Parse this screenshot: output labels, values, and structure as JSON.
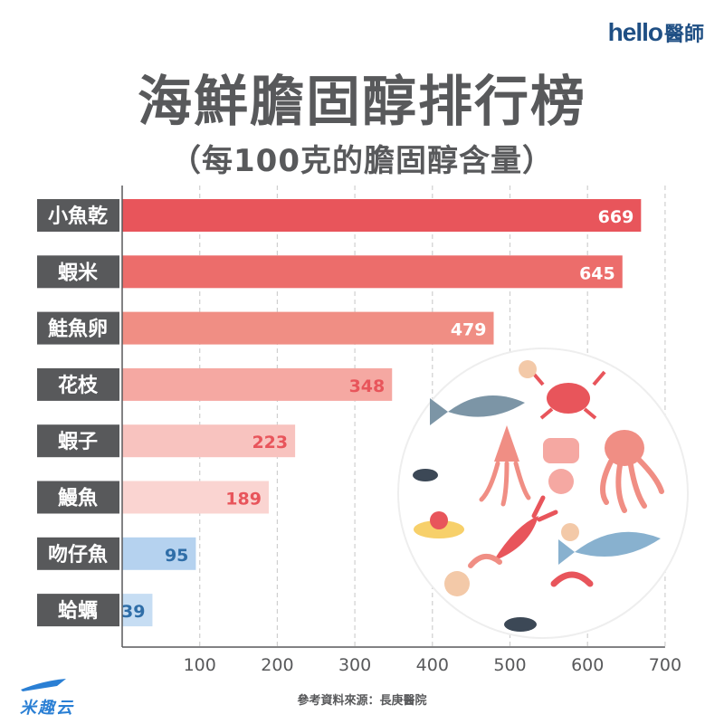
{
  "logo": {
    "text": "hello",
    "text_cn": "醫師"
  },
  "watermark": {
    "text": "米趣云"
  },
  "source": "參考資料來源：長庚醫院",
  "chart_data": {
    "type": "bar",
    "orientation": "horizontal",
    "title": "海鮮膽固醇排行榜",
    "subtitle": "（每100克的膽固醇含量）",
    "categories": [
      "小魚乾",
      "蝦米",
      "鮭魚卵",
      "花枝",
      "蝦子",
      "鰻魚",
      "吻仔魚",
      "蛤蠣"
    ],
    "values": [
      669,
      645,
      479,
      348,
      223,
      189,
      95,
      39
    ],
    "bar_colors": [
      "#e8555b",
      "#ec6d6b",
      "#f08e84",
      "#f5a8a2",
      "#f8c3bf",
      "#fad4d1",
      "#b5d2ef",
      "#c6ddf3"
    ],
    "label_colors": [
      "#ffffff",
      "#ffffff",
      "#ffffff",
      "#e8555b",
      "#e8555b",
      "#e8555b",
      "#2f6ea8",
      "#2f6ea8"
    ],
    "xticks": [
      100,
      200,
      300,
      400,
      500,
      600,
      700
    ],
    "xlim": [
      0,
      700
    ],
    "grid": true,
    "category_label_bg": "#58595b"
  }
}
